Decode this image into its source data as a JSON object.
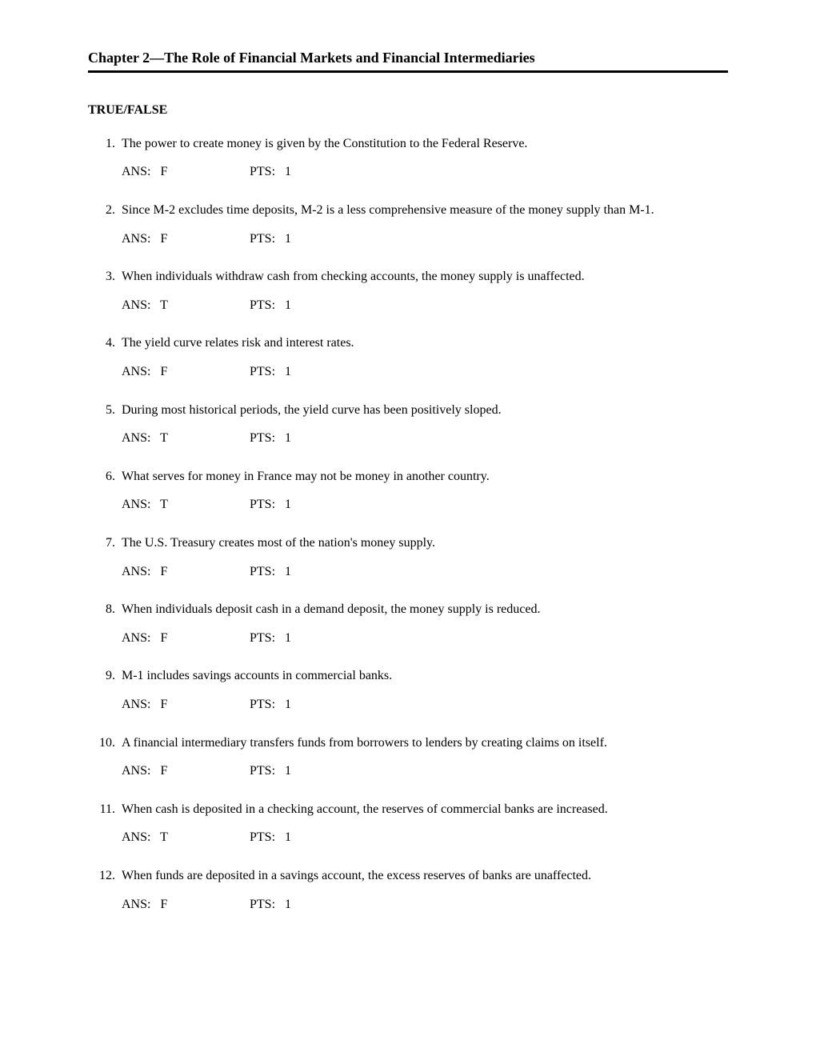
{
  "chapter_title": "Chapter 2—The Role of Financial Markets and Financial Intermediaries",
  "section_header": "TRUE/FALSE",
  "ans_label": "ANS:",
  "pts_label": "PTS:",
  "questions": [
    {
      "num": "1.",
      "text": "The power to create money is given by the Constitution to the Federal Reserve.",
      "ans": "F",
      "pts": "1"
    },
    {
      "num": "2.",
      "text": "Since M-2 excludes time deposits, M-2 is a less comprehensive measure of the money supply than M-1.",
      "ans": "F",
      "pts": "1"
    },
    {
      "num": "3.",
      "text": "When individuals withdraw cash from checking accounts, the money supply is unaffected.",
      "ans": "T",
      "pts": "1"
    },
    {
      "num": "4.",
      "text": "The yield curve relates risk and interest rates.",
      "ans": "F",
      "pts": "1"
    },
    {
      "num": "5.",
      "text": "During most historical periods, the yield curve has been positively sloped.",
      "ans": "T",
      "pts": "1"
    },
    {
      "num": "6.",
      "text": "What serves for money in France may not be money in another country.",
      "ans": "T",
      "pts": "1"
    },
    {
      "num": "7.",
      "text": "The U.S. Treasury creates most of the nation's money supply.",
      "ans": "F",
      "pts": "1"
    },
    {
      "num": "8.",
      "text": "When individuals deposit cash in a demand deposit, the money supply is reduced.",
      "ans": "F",
      "pts": "1"
    },
    {
      "num": "9.",
      "text": "M-1 includes savings accounts in commercial banks.",
      "ans": "F",
      "pts": "1"
    },
    {
      "num": "10.",
      "text": "A financial intermediary transfers funds from borrowers to lenders by creating claims on itself.",
      "ans": "F",
      "pts": "1"
    },
    {
      "num": "11.",
      "text": "When cash is deposited in a checking account, the reserves of commercial banks are increased.",
      "ans": "T",
      "pts": "1"
    },
    {
      "num": "12.",
      "text": "When funds are deposited in a savings account, the excess reserves of banks are unaffected.",
      "ans": "F",
      "pts": "1"
    }
  ]
}
